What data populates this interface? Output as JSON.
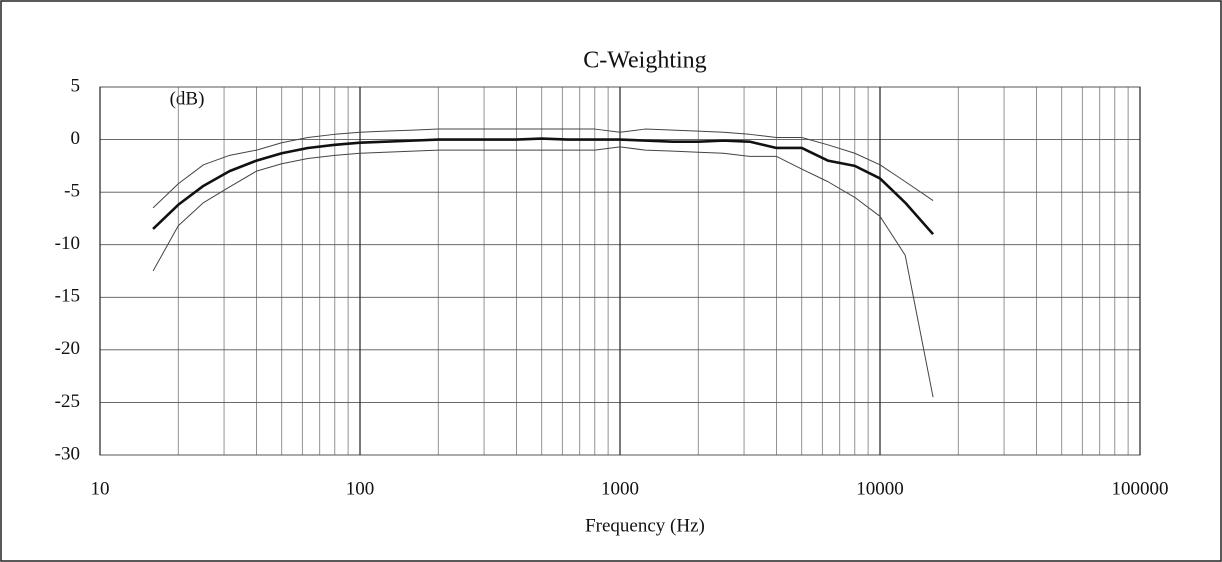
{
  "chart_data": {
    "type": "line",
    "title": "C-Weighting",
    "ylabel": "(dB)",
    "xlabel": "Frequency (Hz)",
    "x": [
      16,
      20,
      25,
      31.5,
      40,
      50,
      63,
      80,
      100,
      125,
      160,
      200,
      250,
      315,
      400,
      500,
      630,
      800,
      1000,
      1250,
      1600,
      2000,
      2500,
      3150,
      4000,
      5000,
      6300,
      8000,
      10000,
      12500,
      16000
    ],
    "series": [
      {
        "color": "#111111",
        "width": 2.6,
        "values": [
          -8.5,
          -6.2,
          -4.4,
          -3.0,
          -2.0,
          -1.3,
          -0.8,
          -0.5,
          -0.3,
          -0.2,
          -0.1,
          0,
          0,
          0,
          0,
          0.1,
          0,
          0,
          0,
          -0.1,
          -0.2,
          -0.2,
          -0.1,
          -0.2,
          -0.8,
          -0.8,
          -2.0,
          -2.5,
          -3.7,
          -6.0,
          -9.0
        ]
      },
      {
        "color": "#444444",
        "width": 1,
        "values": [
          -6.5,
          -4.2,
          -2.4,
          -1.5,
          -1.0,
          -0.3,
          0.2,
          0.5,
          0.7,
          0.8,
          0.9,
          1.0,
          1.0,
          1.0,
          1.0,
          1.0,
          1.0,
          1.0,
          0.7,
          1.0,
          0.9,
          0.8,
          0.7,
          0.5,
          0.2,
          0.2,
          -0.5,
          -1.3,
          -2.4,
          -4.0,
          -5.8
        ]
      },
      {
        "color": "#444444",
        "width": 1,
        "values": [
          -12.5,
          -8.2,
          -6.0,
          -4.5,
          -3.0,
          -2.3,
          -1.8,
          -1.5,
          -1.3,
          -1.2,
          -1.1,
          -1.0,
          -1.0,
          -1.0,
          -1.0,
          -1.0,
          -1.0,
          -1.0,
          -0.7,
          -1.0,
          -1.1,
          -1.2,
          -1.3,
          -1.6,
          -1.6,
          -2.8,
          -4.0,
          -5.5,
          -7.3,
          -11.0,
          -24.5
        ]
      }
    ],
    "xlog": true,
    "xlim": [
      10,
      100000
    ],
    "xticks": [
      10,
      100,
      1000,
      10000,
      100000
    ],
    "xminorticks": [
      20,
      30,
      40,
      50,
      60,
      70,
      80,
      90,
      200,
      300,
      400,
      500,
      600,
      700,
      800,
      900,
      2000,
      3000,
      4000,
      5000,
      6000,
      7000,
      8000,
      9000,
      20000,
      30000,
      40000,
      50000,
      60000,
      70000,
      80000,
      90000
    ],
    "ylim": [
      -30,
      5
    ],
    "yticks": [
      -30,
      -25,
      -20,
      -15,
      -10,
      -5,
      0,
      5
    ],
    "grid": true
  }
}
